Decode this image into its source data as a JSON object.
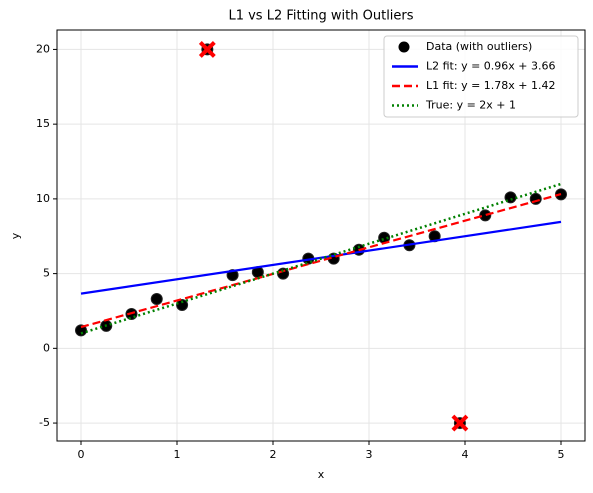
{
  "chart_data": {
    "type": "line",
    "title": "L1 vs L2 Fitting with Outliers",
    "x_label": "x",
    "y_label": "y",
    "xlim": [
      -0.25,
      5.25
    ],
    "ylim": [
      -6.2,
      21.3
    ],
    "xticks": [
      0,
      1,
      2,
      3,
      4,
      5
    ],
    "yticks": [
      -5,
      0,
      5,
      10,
      15,
      20
    ],
    "grid": true,
    "legend_position": "upper-right",
    "series": [
      {
        "name": "Data (with outliers)",
        "color": "#000000",
        "style": "marker",
        "x": [
          0,
          0.263,
          0.526,
          0.789,
          1.053,
          1.316,
          1.579,
          1.842,
          2.105,
          2.368,
          2.632,
          2.895,
          3.158,
          3.421,
          3.684,
          3.947,
          4.211,
          4.474,
          4.737,
          5.0
        ],
        "values": [
          1.2,
          1.5,
          2.3,
          3.3,
          2.9,
          20,
          4.9,
          5.1,
          5.0,
          6.0,
          6.0,
          6.6,
          7.4,
          6.9,
          7.5,
          -5.0,
          8.9,
          10.1,
          10.0,
          10.3
        ],
        "outlier_indices": [
          5,
          15
        ],
        "outlier_color": "#ff0000"
      },
      {
        "name": "L2 fit: y = 0.96x + 3.66",
        "color": "#0000ff",
        "style": "solid",
        "x": [
          0,
          5
        ],
        "values": [
          3.66,
          8.46
        ]
      },
      {
        "name": "L1 fit: y = 1.78x + 1.42",
        "color": "#ff0000",
        "style": "dashed",
        "x": [
          0,
          5
        ],
        "values": [
          1.42,
          10.32
        ]
      },
      {
        "name": "True: y = 2x + 1",
        "color": "#008000",
        "style": "dotted",
        "x": [
          0,
          5
        ],
        "values": [
          1,
          11
        ]
      }
    ]
  }
}
